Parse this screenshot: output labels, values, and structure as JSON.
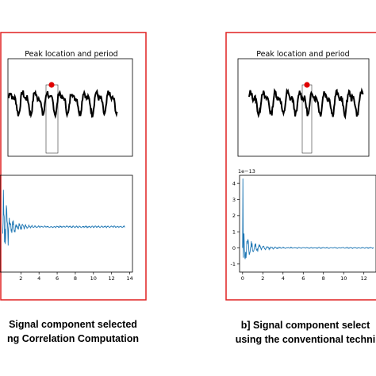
{
  "panels": [
    {
      "caption_line1": "Signal component selected",
      "caption_line2": "ng Correlation Computation"
    },
    {
      "caption_line1": "b] Signal component select",
      "caption_line2": "using the conventional techni"
    }
  ],
  "chart_data": [
    {
      "type": "line",
      "title": "Peak location and period",
      "ylabel": "",
      "xlabel": "",
      "peak_marker_color": "#e00000",
      "grid": false
    },
    {
      "type": "line",
      "title": "",
      "x_ticks": [
        2,
        4,
        6,
        8,
        10,
        12,
        14
      ],
      "xlim": [
        -0.3,
        14.3
      ],
      "ylim": [
        -0.8,
        0.8
      ],
      "line_color": "#1f77b4",
      "grid": false
    },
    {
      "type": "line",
      "title": "Peak location and period",
      "peak_marker_color": "#e00000",
      "grid": false
    },
    {
      "type": "line",
      "title": "",
      "offset_label": "1e−13",
      "x_ticks": [
        0,
        2,
        4,
        6,
        8,
        10,
        12
      ],
      "y_ticks": [
        -1,
        0,
        1,
        2,
        3,
        4
      ],
      "xlim": [
        -0.3,
        13.2
      ],
      "ylim": [
        -1.5,
        4.5
      ],
      "line_color": "#1f77b4",
      "grid": false
    }
  ]
}
